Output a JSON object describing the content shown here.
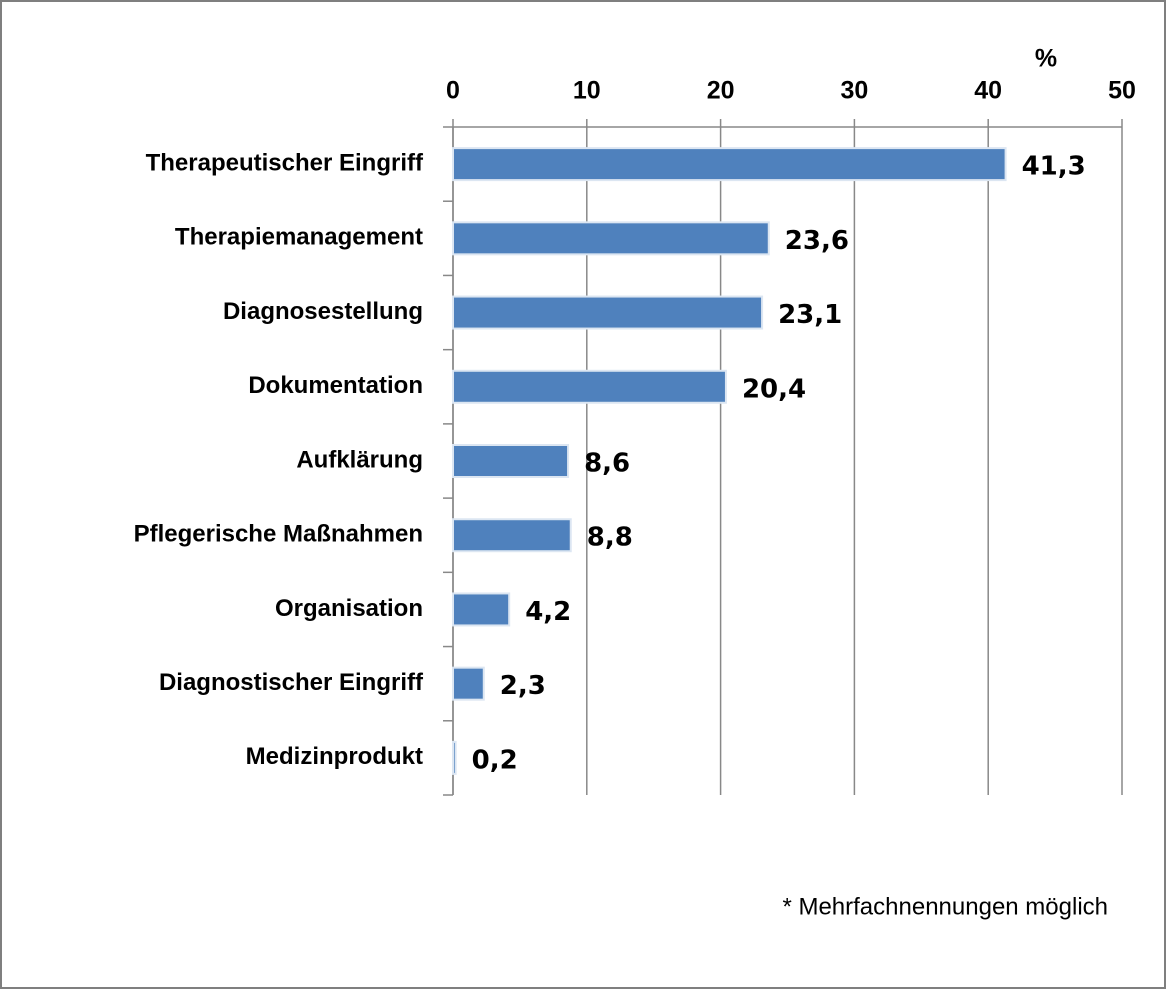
{
  "chart_data": {
    "type": "hbar",
    "unit_label": "%",
    "categories": [
      "Therapeutischer Eingriff",
      "Therapiemanagement",
      "Diagnosestellung",
      "Dokumentation",
      "Aufklärung",
      "Pflegerische Maßnahmen",
      "Organisation",
      "Diagnostischer Eingriff",
      "Medizinprodukt"
    ],
    "values": [
      41.3,
      23.6,
      23.1,
      20.4,
      8.6,
      8.8,
      4.2,
      2.3,
      0.2
    ],
    "value_labels": [
      "41,3",
      "23,6",
      "23,1",
      "20,4",
      "8,6",
      "8,8",
      "4,2",
      "2,3",
      "0,2"
    ],
    "color": "#4f81bd",
    "xlim": [
      0,
      50
    ],
    "xticks": [
      0,
      10,
      20,
      30,
      40,
      50
    ],
    "grid": true,
    "note": "* Mehrfachnennungen möglich"
  }
}
